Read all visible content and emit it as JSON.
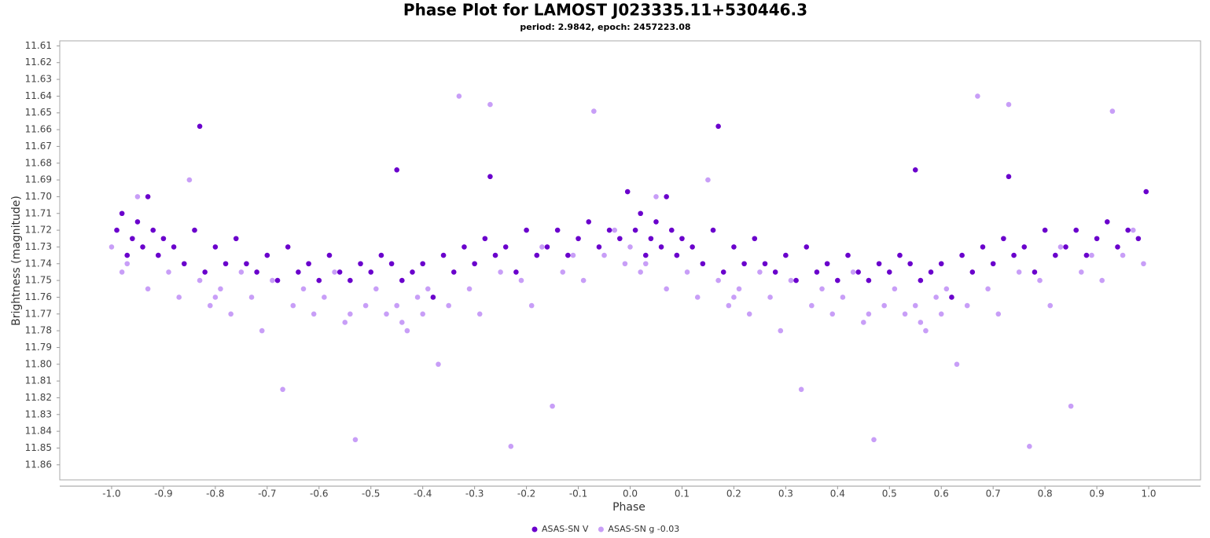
{
  "chart_data": {
    "type": "scatter",
    "title": "Phase Plot for LAMOST J023335.11+530446.3",
    "subtitle": "period: 2.9842, epoch: 2457223.08",
    "x_label": "Phase",
    "y_label": "Brightness (magnitude)",
    "xlim": [
      -1.1,
      1.1
    ],
    "ylim": [
      11.607,
      11.869
    ],
    "y_inverted": true,
    "grid": false,
    "legend": "bottom",
    "xticks": [
      {
        "value": -1,
        "label": "-1.0"
      },
      -0.9,
      -0.8,
      -0.7,
      -0.6,
      -0.5,
      -0.4,
      -0.3,
      -0.2,
      -0.1,
      {
        "value": 0,
        "label": "0.0"
      },
      0.1,
      0.2,
      0.3,
      0.4,
      0.5,
      0.6,
      0.7,
      0.8,
      0.9,
      {
        "value": 1,
        "label": "1.0"
      }
    ],
    "yticks": [
      11.61,
      11.62,
      11.63,
      11.64,
      11.65,
      11.66,
      11.67,
      11.68,
      11.69,
      {
        "value": 11.7,
        "label": "11.70"
      },
      11.71,
      11.72,
      11.73,
      11.74,
      11.75,
      11.76,
      11.77,
      11.78,
      11.79,
      {
        "value": 11.8,
        "label": "11.80"
      },
      11.81,
      11.82,
      11.83,
      11.84,
      11.85,
      11.86
    ],
    "series": [
      {
        "name": "ASAS-SN g -0.03",
        "color": "#c89ef7",
        "x": [
          0,
          0.02,
          0.03,
          0.05,
          0.07,
          0.09,
          0.11,
          0.13,
          0.15,
          0.17,
          0.19,
          0.2,
          0.21,
          0.23,
          0.25,
          0.27,
          0.29,
          0.31,
          0.33,
          0.35,
          0.37,
          0.38,
          0.39,
          0.41,
          0.43,
          0.45,
          0.46,
          0.47,
          0.49,
          0.51,
          0.53,
          0.55,
          0.56,
          0.57,
          0.59,
          0.6,
          0.61,
          0.63,
          0.65,
          0.67,
          0.69,
          0.71,
          0.73,
          0.75,
          0.77,
          0.79,
          0.81,
          0.83,
          0.85,
          0.87,
          0.89,
          0.91,
          0.93,
          0.95,
          0.97,
          0.99,
          -1,
          -0.98,
          -0.97,
          -0.95,
          -0.93,
          -0.91,
          -0.89,
          -0.87,
          -0.85,
          -0.83,
          -0.81,
          -0.8,
          -0.79,
          -0.77,
          -0.75,
          -0.73,
          -0.71,
          -0.69,
          -0.67,
          -0.65,
          -0.63,
          -0.62,
          -0.61,
          -0.59,
          -0.57,
          -0.55,
          -0.54,
          -0.53,
          -0.51,
          -0.49,
          -0.47,
          -0.45,
          -0.44,
          -0.43,
          -0.41,
          -0.4,
          -0.39,
          -0.37,
          -0.35,
          -0.33,
          -0.31,
          -0.29,
          -0.27,
          -0.25,
          -0.23,
          -0.21,
          -0.19,
          -0.17,
          -0.15,
          -0.13,
          -0.11,
          -0.09,
          -0.07,
          -0.05,
          -0.03,
          -0.01
        ],
        "y": [
          11.73,
          11.745,
          11.74,
          11.7,
          11.755,
          11.735,
          11.745,
          11.76,
          11.69,
          11.75,
          11.765,
          11.76,
          11.755,
          11.77,
          11.745,
          11.76,
          11.78,
          11.75,
          11.815,
          11.765,
          11.755,
          11.74,
          11.77,
          11.76,
          11.745,
          11.775,
          11.77,
          11.845,
          11.765,
          11.755,
          11.77,
          11.765,
          11.775,
          11.78,
          11.76,
          11.77,
          11.755,
          11.8,
          11.765,
          11.64,
          11.755,
          11.77,
          11.645,
          11.745,
          11.849,
          11.75,
          11.765,
          11.73,
          11.825,
          11.745,
          11.735,
          11.75,
          11.649,
          11.735,
          11.72,
          11.74,
          11.73,
          11.745,
          11.74,
          11.7,
          11.755,
          11.735,
          11.745,
          11.76,
          11.69,
          11.75,
          11.765,
          11.76,
          11.755,
          11.77,
          11.745,
          11.76,
          11.78,
          11.75,
          11.815,
          11.765,
          11.755,
          11.74,
          11.77,
          11.76,
          11.745,
          11.775,
          11.77,
          11.845,
          11.765,
          11.755,
          11.77,
          11.765,
          11.775,
          11.78,
          11.76,
          11.77,
          11.755,
          11.8,
          11.765,
          11.64,
          11.755,
          11.77,
          11.645,
          11.745,
          11.849,
          11.75,
          11.765,
          11.73,
          11.825,
          11.745,
          11.735,
          11.75,
          11.649,
          11.735,
          11.72,
          11.74
        ]
      },
      {
        "name": "ASAS-SN V",
        "color": "#6a00cc",
        "x": [
          0.01,
          0.02,
          0.03,
          0.04,
          0.05,
          0.06,
          0.07,
          0.08,
          0.09,
          0.1,
          0.12,
          0.14,
          0.16,
          0.17,
          0.18,
          0.2,
          0.22,
          0.24,
          0.26,
          0.28,
          0.3,
          0.32,
          0.34,
          0.36,
          0.38,
          0.4,
          0.42,
          0.44,
          0.46,
          0.48,
          0.5,
          0.52,
          0.54,
          0.55,
          0.56,
          0.58,
          0.6,
          0.62,
          0.64,
          0.66,
          0.68,
          0.7,
          0.72,
          0.73,
          0.74,
          0.76,
          0.78,
          0.8,
          0.82,
          0.84,
          0.86,
          0.88,
          0.9,
          0.92,
          0.94,
          0.96,
          0.98,
          0.995,
          -0.99,
          -0.98,
          -0.97,
          -0.96,
          -0.95,
          -0.94,
          -0.93,
          -0.92,
          -0.91,
          -0.9,
          -0.88,
          -0.86,
          -0.84,
          -0.83,
          -0.82,
          -0.8,
          -0.78,
          -0.76,
          -0.74,
          -0.72,
          -0.7,
          -0.68,
          -0.66,
          -0.64,
          -0.62,
          -0.6,
          -0.58,
          -0.56,
          -0.54,
          -0.52,
          -0.5,
          -0.48,
          -0.46,
          -0.45,
          -0.44,
          -0.42,
          -0.4,
          -0.38,
          -0.36,
          -0.34,
          -0.32,
          -0.3,
          -0.28,
          -0.27,
          -0.26,
          -0.24,
          -0.22,
          -0.2,
          -0.18,
          -0.16,
          -0.14,
          -0.12,
          -0.1,
          -0.08,
          -0.06,
          -0.04,
          -0.02,
          -0.005
        ],
        "y": [
          11.72,
          11.71,
          11.735,
          11.725,
          11.715,
          11.73,
          11.7,
          11.72,
          11.735,
          11.725,
          11.73,
          11.74,
          11.72,
          11.658,
          11.745,
          11.73,
          11.74,
          11.725,
          11.74,
          11.745,
          11.735,
          11.75,
          11.73,
          11.745,
          11.74,
          11.75,
          11.735,
          11.745,
          11.75,
          11.74,
          11.745,
          11.735,
          11.74,
          11.684,
          11.75,
          11.745,
          11.74,
          11.76,
          11.735,
          11.745,
          11.73,
          11.74,
          11.725,
          11.688,
          11.735,
          11.73,
          11.745,
          11.72,
          11.735,
          11.73,
          11.72,
          11.735,
          11.725,
          11.715,
          11.73,
          11.72,
          11.725,
          11.697,
          11.72,
          11.71,
          11.735,
          11.725,
          11.715,
          11.73,
          11.7,
          11.72,
          11.735,
          11.725,
          11.73,
          11.74,
          11.72,
          11.658,
          11.745,
          11.73,
          11.74,
          11.725,
          11.74,
          11.745,
          11.735,
          11.75,
          11.73,
          11.745,
          11.74,
          11.75,
          11.735,
          11.745,
          11.75,
          11.74,
          11.745,
          11.735,
          11.74,
          11.684,
          11.75,
          11.745,
          11.74,
          11.76,
          11.735,
          11.745,
          11.73,
          11.74,
          11.725,
          11.688,
          11.735,
          11.73,
          11.745,
          11.72,
          11.735,
          11.73,
          11.72,
          11.735,
          11.725,
          11.715,
          11.73,
          11.72,
          11.725,
          11.697
        ]
      }
    ]
  }
}
